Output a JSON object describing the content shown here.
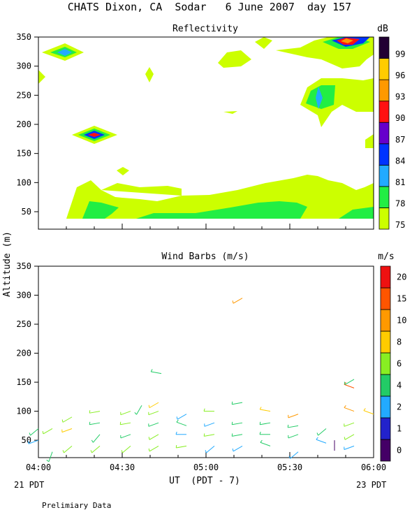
{
  "page_title": "CHATS Dixon, CA  Sodar   6 June 2007  day 157",
  "footer_note": "Prelimiary Data",
  "x_axis": {
    "label": "UT  (PDT - 7)",
    "ticks": [
      "04:00",
      "04:30",
      "05:00",
      "05:30",
      "06:00"
    ],
    "left_sublabel": "21 PDT",
    "right_sublabel": "23 PDT"
  },
  "y_axis_label": "Altitude (m)",
  "chart_data": [
    {
      "type": "heatmap",
      "title": "Reflectivity",
      "x_range": [
        "04:00",
        "06:00"
      ],
      "ylim": [
        20,
        350
      ],
      "yticks": [
        50,
        100,
        150,
        200,
        250,
        300,
        350
      ],
      "colorbar": {
        "unit": "dB",
        "levels": [
          75,
          78,
          81,
          84,
          87,
          90,
          93,
          96,
          99
        ],
        "colors": [
          "#ccff00",
          "#22ee44",
          "#22aaff",
          "#0033ff",
          "#6600cc",
          "#ff1111",
          "#ff9900",
          "#ffcc00",
          "#220033"
        ]
      },
      "features": [
        {
          "x_minutes": 60,
          "y": 45,
          "level": 78
        },
        {
          "x_minutes": 103,
          "y": 40,
          "level": 78
        },
        {
          "x_minutes": 110,
          "y": 245,
          "level": 81
        },
        {
          "x_minutes": 20,
          "y": 180,
          "level": 90
        },
        {
          "x_minutes": 10,
          "y": 320,
          "level": 81
        },
        {
          "x_minutes": 109,
          "y": 340,
          "level": 93
        }
      ],
      "grid": false
    },
    {
      "type": "scatter",
      "title": "Wind Barbs (m/s)",
      "x_range": [
        "04:00",
        "06:00"
      ],
      "ylim": [
        20,
        350
      ],
      "yticks": [
        50,
        100,
        150,
        200,
        250,
        300,
        350
      ],
      "colorbar": {
        "unit": "m/s",
        "ticks": [
          "0",
          "1",
          "2",
          "4",
          "6",
          "8",
          "10",
          "15",
          "20"
        ],
        "colors": [
          "#440066",
          "#2222cc",
          "#22aaff",
          "#22cc66",
          "#88ee22",
          "#ffcc00",
          "#ff9900",
          "#ff5500",
          "#ee1111"
        ]
      },
      "barbs": [
        {
          "t": 0,
          "y": 50,
          "s": 2,
          "d": 250
        },
        {
          "t": 0,
          "y": 70,
          "s": 4,
          "d": 230
        },
        {
          "t": 5,
          "y": 30,
          "s": 4,
          "d": 200
        },
        {
          "t": 5,
          "y": 70,
          "s": 6,
          "d": 240
        },
        {
          "t": 12,
          "y": 40,
          "s": 6,
          "d": 230
        },
        {
          "t": 12,
          "y": 70,
          "s": 8,
          "d": 250
        },
        {
          "t": 12,
          "y": 90,
          "s": 6,
          "d": 240
        },
        {
          "t": 22,
          "y": 40,
          "s": 6,
          "d": 230
        },
        {
          "t": 22,
          "y": 60,
          "s": 5,
          "d": 220
        },
        {
          "t": 22,
          "y": 80,
          "s": 5,
          "d": 260
        },
        {
          "t": 22,
          "y": 100,
          "s": 6,
          "d": 260
        },
        {
          "t": 33,
          "y": 40,
          "s": 6,
          "d": 230
        },
        {
          "t": 33,
          "y": 60,
          "s": 5,
          "d": 250
        },
        {
          "t": 33,
          "y": 80,
          "s": 6,
          "d": 260
        },
        {
          "t": 33,
          "y": 100,
          "s": 6,
          "d": 250
        },
        {
          "t": 37,
          "y": 110,
          "s": 5,
          "d": 210
        },
        {
          "t": 43,
          "y": 40,
          "s": 6,
          "d": 240
        },
        {
          "t": 43,
          "y": 60,
          "s": 6,
          "d": 240
        },
        {
          "t": 43,
          "y": 80,
          "s": 5,
          "d": 250
        },
        {
          "t": 43,
          "y": 100,
          "s": 6,
          "d": 250
        },
        {
          "t": 43,
          "y": 115,
          "s": 8,
          "d": 240
        },
        {
          "t": 44,
          "y": 165,
          "s": 4,
          "d": 280
        },
        {
          "t": 53,
          "y": 40,
          "s": 6,
          "d": 260
        },
        {
          "t": 53,
          "y": 60,
          "s": 3,
          "d": 270
        },
        {
          "t": 53,
          "y": 75,
          "s": 5,
          "d": 290
        },
        {
          "t": 53,
          "y": 95,
          "s": 2,
          "d": 240
        },
        {
          "t": 63,
          "y": 40,
          "s": 3,
          "d": 230
        },
        {
          "t": 63,
          "y": 60,
          "s": 6,
          "d": 260
        },
        {
          "t": 63,
          "y": 80,
          "s": 2,
          "d": 250
        },
        {
          "t": 63,
          "y": 100,
          "s": 6,
          "d": 270
        },
        {
          "t": 73,
          "y": 40,
          "s": 3,
          "d": 240
        },
        {
          "t": 73,
          "y": 60,
          "s": 4,
          "d": 260
        },
        {
          "t": 73,
          "y": 80,
          "s": 4,
          "d": 260
        },
        {
          "t": 73,
          "y": 115,
          "s": 5,
          "d": 260
        },
        {
          "t": 73,
          "y": 295,
          "s": 10,
          "d": 240
        },
        {
          "t": 83,
          "y": 40,
          "s": 4,
          "d": 290
        },
        {
          "t": 83,
          "y": 60,
          "s": 4,
          "d": 270
        },
        {
          "t": 83,
          "y": 80,
          "s": 4,
          "d": 260
        },
        {
          "t": 83,
          "y": 100,
          "s": 8,
          "d": 280
        },
        {
          "t": 93,
          "y": 30,
          "s": 3,
          "d": 230
        },
        {
          "t": 93,
          "y": 60,
          "s": 4,
          "d": 250
        },
        {
          "t": 93,
          "y": 75,
          "s": 4,
          "d": 260
        },
        {
          "t": 93,
          "y": 95,
          "s": 10,
          "d": 250
        },
        {
          "t": 103,
          "y": 45,
          "s": 2,
          "d": 290
        },
        {
          "t": 103,
          "y": 70,
          "s": 4,
          "d": 230
        },
        {
          "t": 106,
          "y": 50,
          "s": 0,
          "d": 180
        },
        {
          "t": 113,
          "y": 40,
          "s": 2,
          "d": 250
        },
        {
          "t": 113,
          "y": 60,
          "s": 6,
          "d": 240
        },
        {
          "t": 113,
          "y": 80,
          "s": 6,
          "d": 250
        },
        {
          "t": 113,
          "y": 100,
          "s": 10,
          "d": 290
        },
        {
          "t": 113,
          "y": 140,
          "s": 15,
          "d": 290
        },
        {
          "t": 113,
          "y": 155,
          "s": 4,
          "d": 240
        },
        {
          "t": 120,
          "y": 95,
          "s": 8,
          "d": 290
        }
      ],
      "grid": false
    }
  ]
}
